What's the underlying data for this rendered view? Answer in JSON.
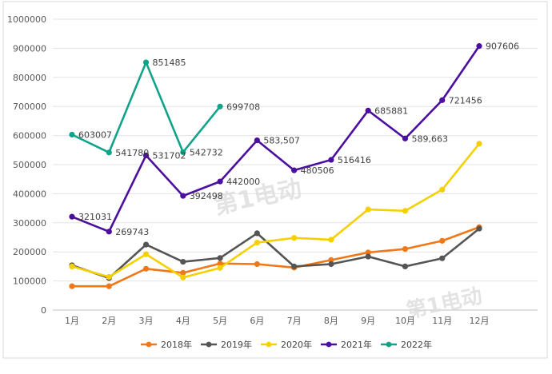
{
  "chart_data": {
    "type": "line",
    "title": "",
    "categories": [
      "1月",
      "2月",
      "3月",
      "4月",
      "5月",
      "6月",
      "7月",
      "8月",
      "9月",
      "10月",
      "11月",
      "12月"
    ],
    "ylim": [
      0,
      1000000
    ],
    "yticks": [
      "0",
      "100000",
      "200000",
      "300000",
      "400000",
      "500000",
      "600000",
      "700000",
      "800000",
      "900000",
      "1000000"
    ],
    "grid": true,
    "legend_position": "bottom",
    "series": [
      {
        "name": "2018年",
        "color": "#f07818",
        "values": [
          82000,
          82000,
          142000,
          128000,
          160000,
          158000,
          146000,
          172000,
          198000,
          210000,
          238000,
          285000
        ]
      },
      {
        "name": "2019年",
        "color": "#555555",
        "values": [
          154000,
          110000,
          225000,
          166000,
          179000,
          264000,
          150000,
          158000,
          184000,
          150000,
          178000,
          280000
        ]
      },
      {
        "name": "2020年",
        "color": "#f5d000",
        "values": [
          150000,
          114000,
          192000,
          112000,
          145000,
          232000,
          248000,
          242000,
          346000,
          341000,
          414000,
          572000
        ]
      },
      {
        "name": "2021年",
        "color": "#4b0fa0",
        "values": [
          321031,
          269743,
          531702,
          392498,
          442000,
          583507,
          480506,
          516416,
          685881,
          589663,
          721456,
          907606
        ]
      },
      {
        "name": "2022年",
        "color": "#11a38a",
        "values": [
          603007,
          541780,
          851485,
          542732,
          699708,
          null,
          null,
          null,
          null,
          null,
          null,
          null
        ]
      }
    ],
    "data_labels": [
      {
        "series": "2021年",
        "index": 0,
        "text": "321031"
      },
      {
        "series": "2021年",
        "index": 1,
        "text": "269743"
      },
      {
        "series": "2021年",
        "index": 2,
        "text": "531702"
      },
      {
        "series": "2021年",
        "index": 3,
        "text": "392498"
      },
      {
        "series": "2021年",
        "index": 4,
        "text": "442000"
      },
      {
        "series": "2021年",
        "index": 5,
        "text": "583,507"
      },
      {
        "series": "2021年",
        "index": 6,
        "text": "480506"
      },
      {
        "series": "2021年",
        "index": 7,
        "text": "516416"
      },
      {
        "series": "2021年",
        "index": 8,
        "text": "685881"
      },
      {
        "series": "2021年",
        "index": 9,
        "text": "589,663"
      },
      {
        "series": "2021年",
        "index": 10,
        "text": "721456"
      },
      {
        "series": "2021年",
        "index": 11,
        "text": "907606"
      },
      {
        "series": "2022年",
        "index": 0,
        "text": "603007"
      },
      {
        "series": "2022年",
        "index": 1,
        "text": "541780"
      },
      {
        "series": "2022年",
        "index": 2,
        "text": "851485"
      },
      {
        "series": "2022年",
        "index": 3,
        "text": "542732"
      },
      {
        "series": "2022年",
        "index": 4,
        "text": "699708"
      }
    ]
  },
  "watermark": {
    "text": "第1电动"
  }
}
